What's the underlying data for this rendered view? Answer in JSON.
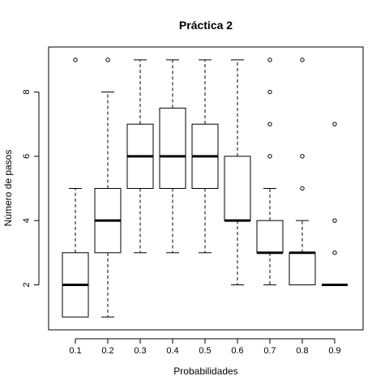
{
  "chart_data": {
    "type": "boxplot",
    "title": "Práctica 2",
    "xlabel": "Probabilidades",
    "ylabel": "Número de pasos",
    "ylim": [
      0.6,
      9.4
    ],
    "yticks": [
      2,
      4,
      6,
      8
    ],
    "grid": false,
    "categories": [
      "0.1",
      "0.2",
      "0.3",
      "0.4",
      "0.5",
      "0.6",
      "0.7",
      "0.8",
      "0.9"
    ],
    "boxes": [
      {
        "category": "0.1",
        "whisker_low": 1,
        "q1": 1,
        "median": 2,
        "q3": 3,
        "whisker_high": 5,
        "outliers": [
          9
        ]
      },
      {
        "category": "0.2",
        "whisker_low": 1,
        "q1": 3,
        "median": 4,
        "q3": 5,
        "whisker_high": 8,
        "outliers": [
          9
        ]
      },
      {
        "category": "0.3",
        "whisker_low": 3,
        "q1": 5,
        "median": 6,
        "q3": 7,
        "whisker_high": 9,
        "outliers": []
      },
      {
        "category": "0.4",
        "whisker_low": 3,
        "q1": 5,
        "median": 6,
        "q3": 7.5,
        "whisker_high": 9,
        "outliers": []
      },
      {
        "category": "0.5",
        "whisker_low": 3,
        "q1": 5,
        "median": 6,
        "q3": 7,
        "whisker_high": 9,
        "outliers": []
      },
      {
        "category": "0.6",
        "whisker_low": 2,
        "q1": 4,
        "median": 4,
        "q3": 6,
        "whisker_high": 9,
        "outliers": []
      },
      {
        "category": "0.7",
        "whisker_low": 2,
        "q1": 3,
        "median": 3,
        "q3": 4,
        "whisker_high": 5,
        "outliers": [
          6,
          7,
          8,
          9
        ]
      },
      {
        "category": "0.8",
        "whisker_low": 2,
        "q1": 2,
        "median": 3,
        "q3": 3,
        "whisker_high": 4,
        "outliers": [
          5,
          6,
          9
        ]
      },
      {
        "category": "0.9",
        "whisker_low": 2,
        "q1": 2,
        "median": 2,
        "q3": 2,
        "whisker_high": 2,
        "outliers": [
          3,
          4,
          7
        ]
      }
    ]
  }
}
